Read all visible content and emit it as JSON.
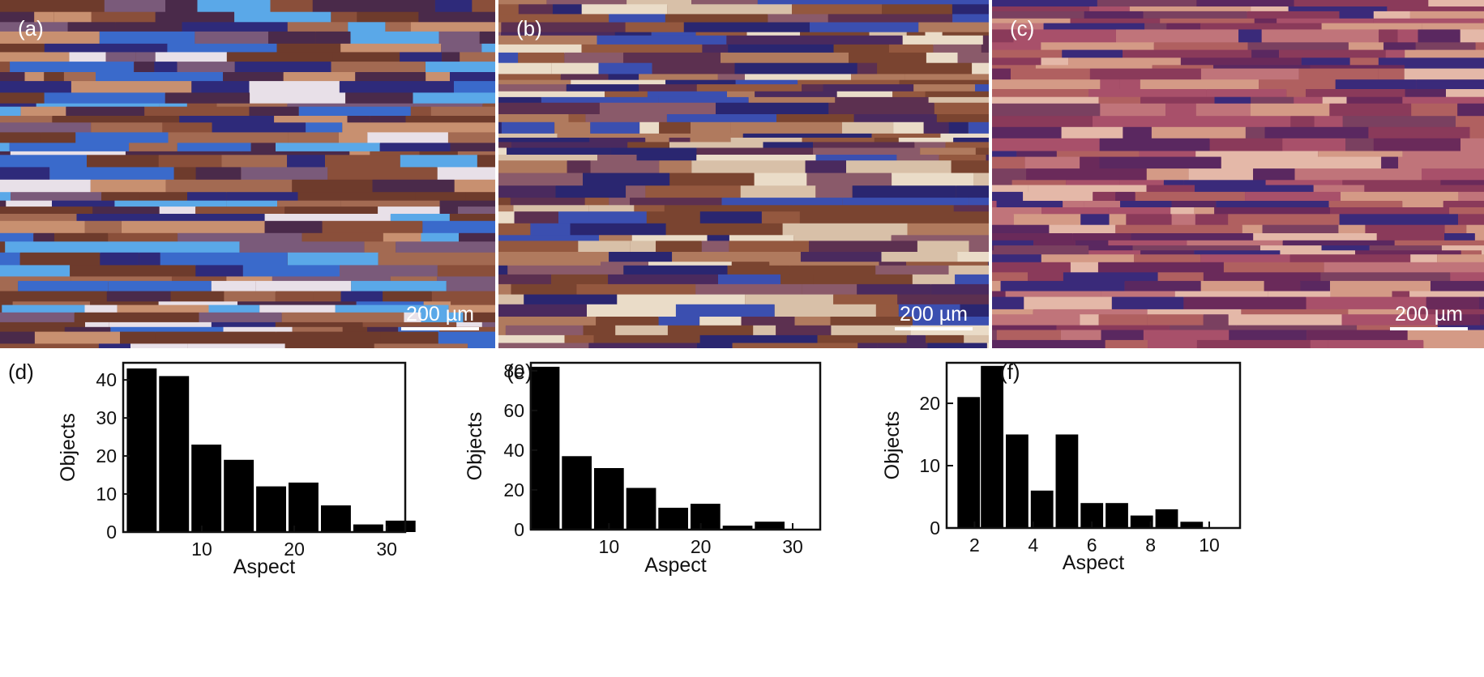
{
  "panels": [
    {
      "label": "(a)",
      "scalebar": "200 µm",
      "palette": [
        "#6e3b2c",
        "#8a4f3a",
        "#a36a52",
        "#4a2a4a",
        "#2e2a7a",
        "#3a6acb",
        "#5aa8e8",
        "#e8e0e8",
        "#c89070",
        "#7a5a7a"
      ]
    },
    {
      "label": "(b)",
      "scalebar": "200 µm",
      "palette": [
        "#7a4430",
        "#94583f",
        "#b07a5e",
        "#4a2a5e",
        "#2a2670",
        "#3b4fb0",
        "#d8c0a8",
        "#eadcc8",
        "#8a5a6a",
        "#5c3050"
      ]
    },
    {
      "label": "(c)",
      "scalebar": "200 µm",
      "palette": [
        "#8a3a5a",
        "#a8506a",
        "#c0747a",
        "#6a2a5a",
        "#3a2a7a",
        "#d49a86",
        "#b06060",
        "#e4b8a8",
        "#7a4060",
        "#5a2860"
      ]
    }
  ],
  "chart_data": [
    {
      "type": "bar",
      "label": "(d)",
      "xlabel": "Aspect",
      "ylabel": "Objects",
      "x": [
        3.5,
        7,
        10.5,
        14,
        17.5,
        21,
        24.5,
        28,
        31.5
      ],
      "values": [
        43,
        41,
        23,
        19,
        12,
        13,
        7,
        2,
        3
      ],
      "bin_width": 3.5,
      "xlim": [
        1.5,
        32
      ],
      "ylim": [
        0,
        44.5
      ],
      "xticks": [
        10,
        20,
        30
      ],
      "yticks": [
        0,
        10,
        20,
        30,
        40
      ],
      "bar_color": "#000000"
    },
    {
      "type": "bar",
      "label": "(e)",
      "xlabel": "Aspect",
      "ylabel": "Objects",
      "x": [
        3,
        6.5,
        10,
        13.5,
        17,
        20.5,
        24,
        27.5,
        31
      ],
      "values": [
        82,
        37,
        31,
        21,
        11,
        13,
        2,
        4,
        0
      ],
      "bin_width": 3.5,
      "xlim": [
        1.5,
        33
      ],
      "ylim": [
        0,
        84
      ],
      "xticks": [
        10,
        20,
        30
      ],
      "yticks": [
        0,
        20,
        40,
        60,
        80
      ],
      "bar_color": "#000000"
    },
    {
      "type": "bar",
      "label": "(f)",
      "xlabel": "Aspect",
      "ylabel": "Objects",
      "x": [
        1.8,
        2.6,
        3.45,
        4.3,
        5.15,
        6,
        6.85,
        7.7,
        8.55,
        9.4,
        10.25
      ],
      "values": [
        21,
        26,
        15,
        6,
        15,
        4,
        4,
        2,
        3,
        1,
        0
      ],
      "bin_width": 0.85,
      "xlim": [
        1.05,
        11.05
      ],
      "ylim": [
        0,
        26.5
      ],
      "xticks": [
        2,
        4,
        6,
        8,
        10
      ],
      "yticks": [
        0,
        10,
        20
      ],
      "bar_color": "#000000"
    }
  ]
}
